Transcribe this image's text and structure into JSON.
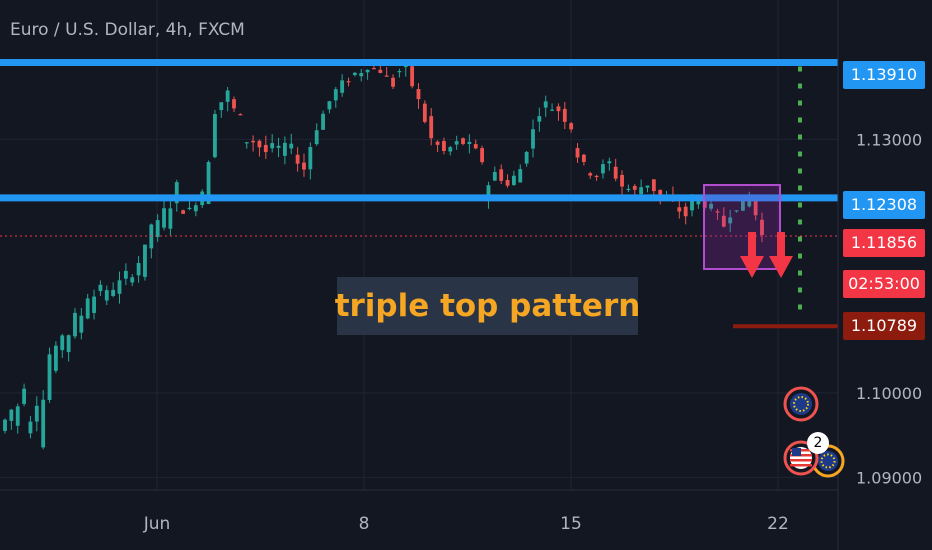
{
  "header": {
    "title": "Euro / U.S. Dollar, 4h, FXCM"
  },
  "annotation": {
    "text": "triple top pattern"
  },
  "price_labels": [
    {
      "value": "1.13910",
      "bg": "#2196f3",
      "fg": "#ffffff"
    },
    {
      "value": "1.12308",
      "bg": "#2196f3",
      "fg": "#ffffff"
    },
    {
      "value": "1.11856",
      "bg": "#f23645",
      "fg": "#ffffff"
    },
    {
      "value": "02:53:00",
      "bg": "#f23645",
      "fg": "#ffffff"
    },
    {
      "value": "1.10789",
      "bg": "#8e1c0e",
      "fg": "#ffffff"
    }
  ],
  "events": {
    "badge_count": "2"
  },
  "colors": {
    "background": "#131722",
    "up": "#26a69a",
    "down": "#ef5350",
    "levels": "#2196f3",
    "dotted_line": "#4caf50",
    "box": "#9c27b0",
    "arrows": "#f23645",
    "annotation_text": "#f5a623"
  },
  "chart_data": {
    "type": "candlestick",
    "title": "Euro / U.S. Dollar, 4h, FXCM",
    "y_ticks": [
      "1.13000",
      "1.10000",
      "1.09000"
    ],
    "x_ticks": [
      "Jun",
      "8",
      "15",
      "22"
    ],
    "ylim": [
      1.0885,
      1.1465
    ],
    "horizontal_levels": [
      1.1391,
      1.12308
    ],
    "current_price": 1.11856,
    "target_price": 1.10789,
    "series_points": [
      [
        1.0955,
        1.098
      ],
      [
        1.096,
        1.101
      ],
      [
        1.095,
        1.099
      ],
      [
        1.094,
        1.1045
      ],
      [
        1.103,
        1.107
      ],
      [
        1.105,
        1.109
      ],
      [
        1.107,
        1.1115
      ],
      [
        1.11,
        1.113
      ],
      [
        1.111,
        1.1125
      ],
      [
        1.112,
        1.114
      ],
      [
        1.113,
        1.1155
      ],
      [
        1.114,
        1.12
      ],
      [
        1.1185,
        1.1215
      ],
      [
        1.12,
        1.1245
      ],
      [
        1.122,
        1.1215
      ],
      [
        1.1215,
        1.124
      ],
      [
        1.122,
        1.1335
      ],
      [
        1.1335,
        1.1355
      ],
      [
        1.1345,
        1.1325
      ],
      [
        1.13,
        1.1298
      ],
      [
        1.1298,
        1.1285
      ],
      [
        1.129,
        1.129
      ],
      [
        1.128,
        1.13
      ],
      [
        1.128,
        1.1265
      ],
      [
        1.127,
        1.1315
      ],
      [
        1.1315,
        1.1345
      ],
      [
        1.135,
        1.1365
      ],
      [
        1.1365,
        1.1378
      ],
      [
        1.1375,
        1.1388
      ],
      [
        1.1385,
        1.1382
      ],
      [
        1.138,
        1.1365
      ],
      [
        1.1378,
        1.1384
      ],
      [
        1.1383,
        1.1345
      ],
      [
        1.1345,
        1.13
      ],
      [
        1.13,
        1.1285
      ],
      [
        1.1285,
        1.1295
      ],
      [
        1.13,
        1.1292
      ],
      [
        1.1295,
        1.1275
      ],
      [
        1.1235,
        1.126
      ],
      [
        1.1265,
        1.1245
      ],
      [
        1.1245,
        1.1265
      ],
      [
        1.127,
        1.131
      ],
      [
        1.1325,
        1.1342
      ],
      [
        1.134,
        1.1335
      ],
      [
        1.1335,
        1.1315
      ],
      [
        1.1295,
        1.1268
      ],
      [
        1.1265,
        1.1258
      ],
      [
        1.1262,
        1.1272
      ],
      [
        1.1268,
        1.1245
      ],
      [
        1.1245,
        1.1238
      ],
      [
        1.124,
        1.1248
      ],
      [
        1.125,
        1.1232
      ],
      [
        1.123,
        1.1225
      ],
      [
        1.1222,
        1.121
      ],
      [
        1.122,
        1.123
      ],
      [
        1.123,
        1.1218
      ],
      [
        1.1218,
        1.1198
      ],
      [
        1.1205,
        1.1222
      ],
      [
        1.1218,
        1.123
      ],
      [
        1.1235,
        1.1186
      ]
    ]
  }
}
